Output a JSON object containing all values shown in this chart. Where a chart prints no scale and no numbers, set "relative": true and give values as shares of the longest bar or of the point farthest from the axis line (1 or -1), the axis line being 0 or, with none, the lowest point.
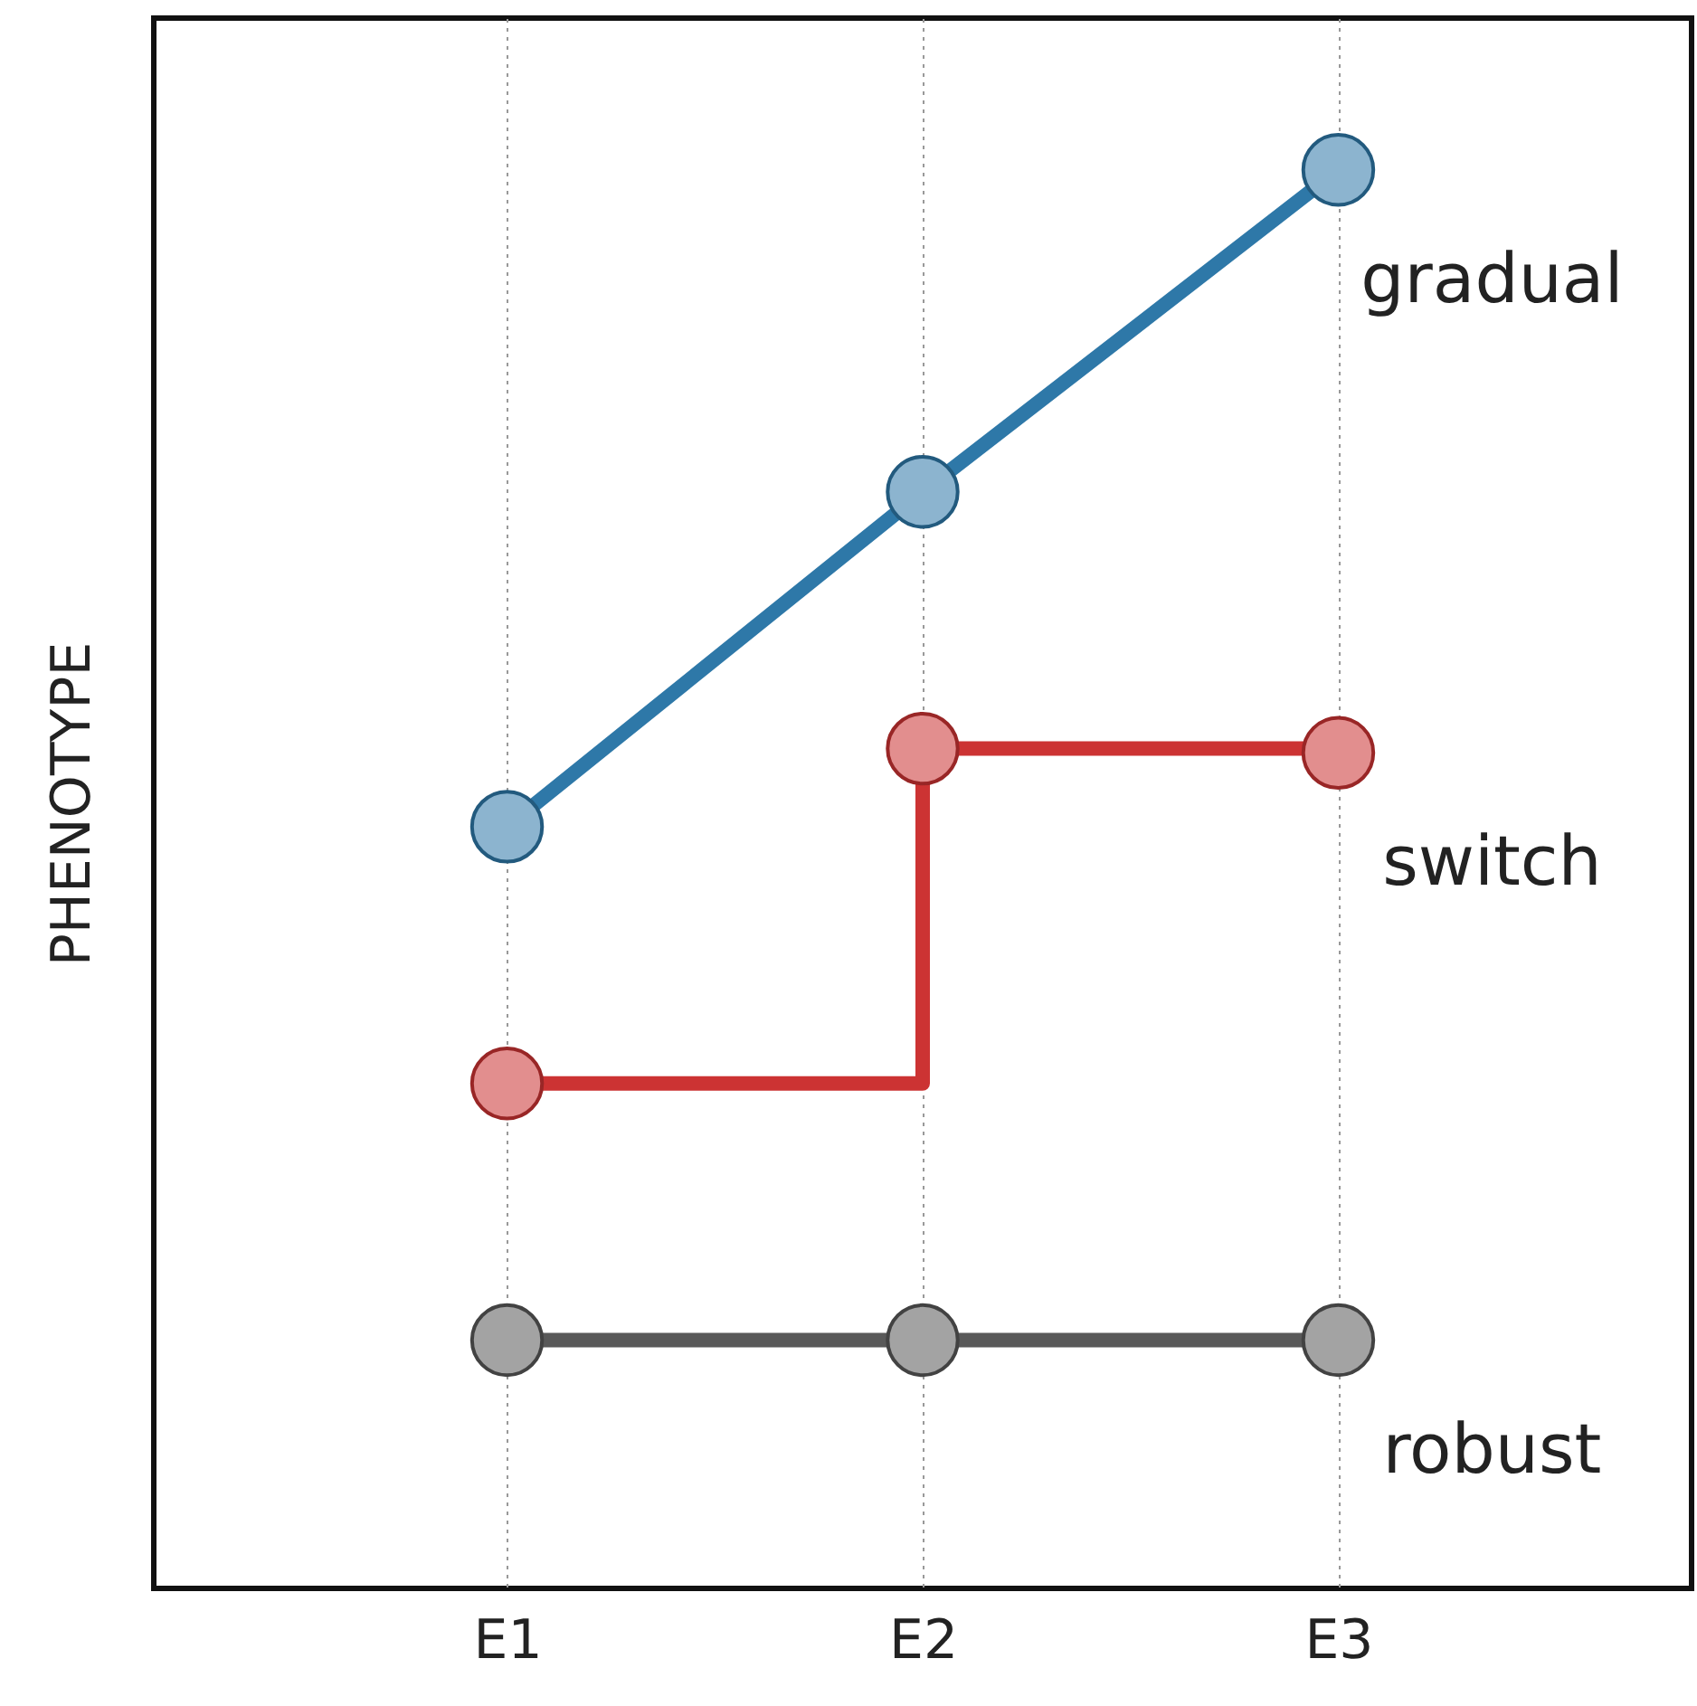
{
  "chart_data": {
    "type": "line",
    "ylabel": "PHENOTYPE",
    "categories": [
      "E1",
      "E2",
      "E3"
    ],
    "relative": true,
    "grid": "x",
    "legend": false,
    "marker": "circle",
    "line_style": "solid",
    "series": [
      {
        "name": "gradual",
        "type": "line",
        "color": "#2e78a8",
        "values": [
          0.537,
          0.773,
          1
        ]
      },
      {
        "name": "switch",
        "type": "step",
        "color": "#cc3333",
        "values": [
          0.356,
          0.592,
          0.589
        ]
      },
      {
        "name": "robust",
        "type": "line",
        "color": "#595959",
        "values": [
          0.175,
          0.175,
          0.175
        ]
      }
    ]
  }
}
